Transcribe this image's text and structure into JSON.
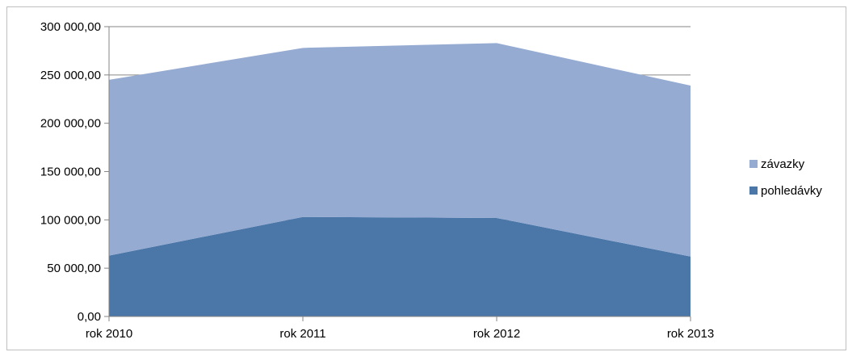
{
  "chart_data": {
    "type": "area",
    "stacked": true,
    "categories": [
      "rok 2010",
      "rok 2011",
      "rok 2012",
      "rok 2013"
    ],
    "series": [
      {
        "name": "pohledávky",
        "values": [
          63000,
          103000,
          102000,
          62000
        ],
        "color": "#4a76a8"
      },
      {
        "name": "závazky",
        "values": [
          182000,
          175000,
          181000,
          177000
        ],
        "color": "#95abd2"
      }
    ],
    "ylim": [
      0,
      300000
    ],
    "yticks": [
      0,
      50000,
      100000,
      150000,
      200000,
      250000,
      300000
    ],
    "ytick_labels": [
      "0,00",
      "50 000,00",
      "100 000,00",
      "150 000,00",
      "200 000,00",
      "250 000,00",
      "300 000,00"
    ],
    "legend_position": "right",
    "legend_order": [
      "závazky",
      "pohledávky"
    ],
    "grid": "horizontal",
    "axis_color": "#868686"
  }
}
